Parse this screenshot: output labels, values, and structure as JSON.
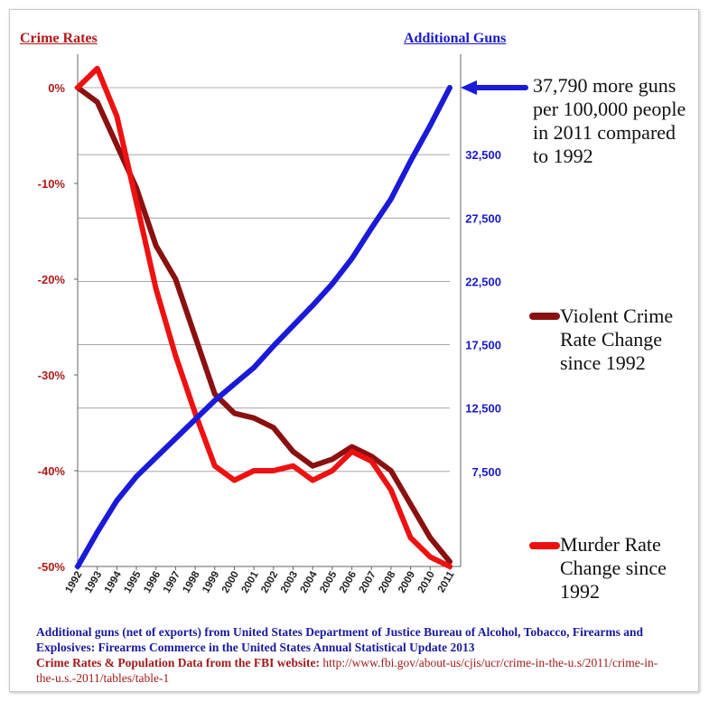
{
  "colors": {
    "guns": "#1a1ad8",
    "violent": "#8b1010",
    "murder": "#ee1111",
    "left_axis_text": "#b01a1a",
    "right_axis_text": "#1a1ac8",
    "grid": "#999999"
  },
  "annotation": {
    "gun_note": "37,790 more guns per 100,000 people in 2011 compared to 1992"
  },
  "sources": {
    "line1": "Additional guns (net of exports) from United States Department of Justice Bureau of Alcohol, Tobacco, Firearms and Explosives: Firearms Commerce in the United States Annual Statistical Update 2013",
    "line2_label": "Crime Rates & Population Data from the FBI website:",
    "line2_url": "http://www.fbi.gov/about-us/cjis/ucr/crime-in-the-u.s/2011/crime-in-the-u.s.-2011/tables/table-1"
  },
  "chart_data": {
    "type": "line",
    "left_axis": {
      "title": "Crime Rates",
      "ticks": [
        "0%",
        "-10%",
        "-20%",
        "-30%",
        "-40%",
        "-50%"
      ],
      "ylim": [
        -50,
        0
      ]
    },
    "right_axis": {
      "title": "Additional Guns",
      "ticks": [
        "7,500",
        "12,500",
        "17,500",
        "22,500",
        "27,500",
        "32,500"
      ],
      "ylim": [
        0,
        37790
      ]
    },
    "categories": [
      "1992",
      "1993",
      "1994",
      "1995",
      "1996",
      "1997",
      "1998",
      "1999",
      "2000",
      "2001",
      "2002",
      "2003",
      "2004",
      "2005",
      "2006",
      "2007",
      "2008",
      "2009",
      "2010",
      "2011"
    ],
    "series": [
      {
        "name": "Violent Crime Rate Change since 1992",
        "axis": "left",
        "values": [
          0,
          -1.5,
          -6,
          -10.5,
          -16.5,
          -20,
          -26,
          -32,
          -34,
          -34.5,
          -35.5,
          -38,
          -39.5,
          -38.8,
          -37.5,
          -38.5,
          -40,
          -43.5,
          -47,
          -49.5
        ]
      },
      {
        "name": "Murder Rate Change since 1992",
        "axis": "left",
        "values": [
          0,
          2,
          -3,
          -12,
          -21,
          -28,
          -34,
          -39.5,
          -41,
          -40,
          -40,
          -39.5,
          -41,
          -40,
          -38,
          -39,
          -42,
          -47,
          -49,
          -50
        ]
      },
      {
        "name": "Additional Guns",
        "axis": "right",
        "values": [
          0,
          2700,
          5200,
          7100,
          8600,
          10100,
          11600,
          13100,
          14400,
          15700,
          17400,
          19000,
          20600,
          22300,
          24300,
          26700,
          29000,
          32000,
          34800,
          37790
        ]
      }
    ],
    "grid": true,
    "legend": "right"
  }
}
